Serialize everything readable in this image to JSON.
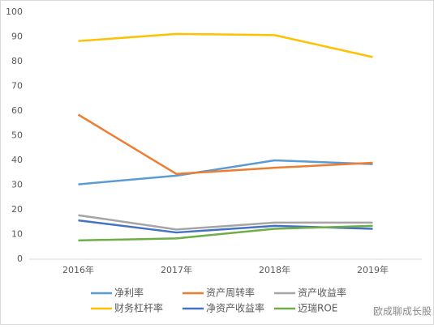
{
  "chart_data": {
    "type": "line",
    "categories": [
      "2016年",
      "2017年",
      "2018年",
      "2019年"
    ],
    "series": [
      {
        "name": "净利率",
        "color": "#5b9bd5",
        "values": [
          30.3,
          33.8,
          40,
          38.5
        ]
      },
      {
        "name": "资产周转率",
        "color": "#ed7d31",
        "values": [
          58.5,
          34.5,
          37,
          39
        ]
      },
      {
        "name": "资产收益率",
        "color": "#a5a5a5",
        "values": [
          17.8,
          12,
          14.8,
          14.8
        ]
      },
      {
        "name": "财务杠杆率",
        "color": "#ffc000",
        "values": [
          88.3,
          91.2,
          90.7,
          81.8
        ]
      },
      {
        "name": "净资产收益率",
        "color": "#4472c4",
        "values": [
          15.7,
          10.8,
          13.5,
          12.3
        ]
      },
      {
        "name": "迈瑞ROE",
        "color": "#70ad47",
        "values": [
          7.6,
          8.4,
          12.3,
          13.5
        ]
      }
    ],
    "ylim": [
      0,
      100
    ],
    "yticks": [
      0,
      10,
      20,
      30,
      40,
      50,
      60,
      70,
      80,
      90,
      100
    ],
    "grid": false,
    "legend": "bottom",
    "watermark": "欧成聊成长股"
  }
}
